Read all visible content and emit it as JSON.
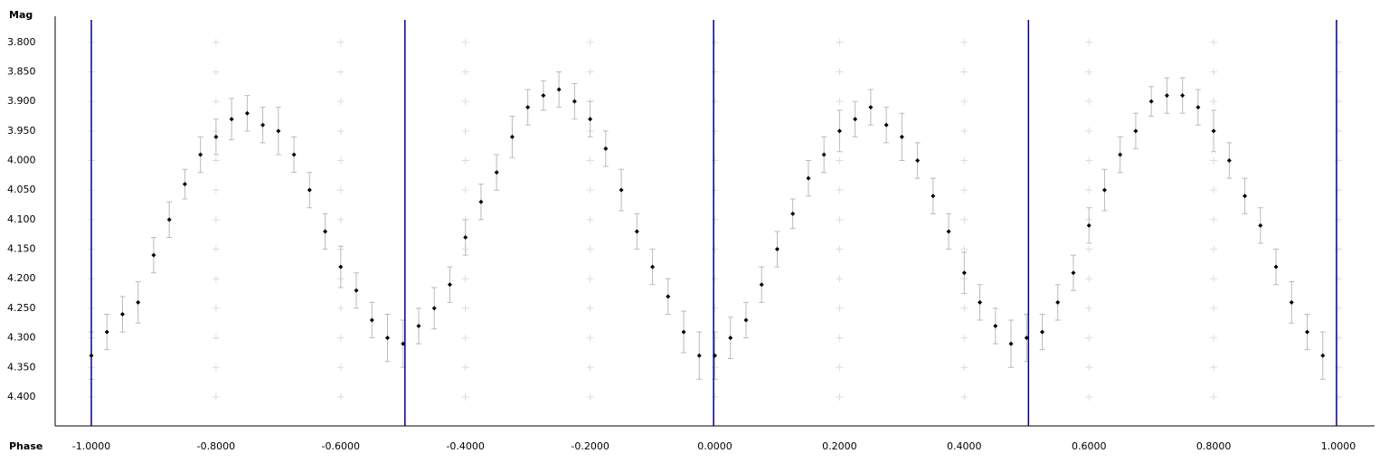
{
  "chart_data": {
    "type": "errorscatter",
    "ylabel": "Mag",
    "xlabel": "Phase",
    "xlim": [
      -1.058,
      1.058
    ],
    "ylim": [
      4.449,
      3.756
    ],
    "xticks": [
      {
        "value": -1.0,
        "label": "-1.0000"
      },
      {
        "value": -0.8,
        "label": "-0.8000"
      },
      {
        "value": -0.6,
        "label": "-0.6000"
      },
      {
        "value": -0.4,
        "label": "-0.4000"
      },
      {
        "value": -0.2,
        "label": "-0.2000"
      },
      {
        "value": 0,
        "label": "0.0000"
      },
      {
        "value": 0.2,
        "label": "0.2000"
      },
      {
        "value": 0.4,
        "label": "0.4000"
      },
      {
        "value": 0.6,
        "label": "0.6000"
      },
      {
        "value": 0.8,
        "label": "0.8000"
      },
      {
        "value": 1.0,
        "label": "1.0000"
      }
    ],
    "yticks": [
      {
        "value": 3.8,
        "label": "3.800"
      },
      {
        "value": 3.85,
        "label": "3.850"
      },
      {
        "value": 3.9,
        "label": "3.900"
      },
      {
        "value": 3.95,
        "label": "3.950"
      },
      {
        "value": 4.0,
        "label": "4.000"
      },
      {
        "value": 4.05,
        "label": "4.050"
      },
      {
        "value": 4.1,
        "label": "4.100"
      },
      {
        "value": 4.15,
        "label": "4.150"
      },
      {
        "value": 4.2,
        "label": "4.200"
      },
      {
        "value": 4.25,
        "label": "4.250"
      },
      {
        "value": 4.3,
        "label": "4.300"
      },
      {
        "value": 4.35,
        "label": "4.350"
      },
      {
        "value": 4.4,
        "label": "4.400"
      }
    ],
    "grid": true,
    "color": "#000000",
    "error_color": "#bbbbbb",
    "vlines": [
      -1.0,
      -0.497,
      -0.002,
      0.503,
      0.997
    ],
    "vline_color": "#00008b",
    "x": [
      -1,
      -0.975,
      -0.95,
      -0.925,
      -0.9,
      -0.875,
      -0.85,
      -0.825,
      -0.8,
      -0.775,
      -0.75,
      -0.725,
      -0.7,
      -0.675,
      -0.65,
      -0.625,
      -0.6,
      -0.575,
      -0.55,
      -0.525,
      -0.5,
      -0.475,
      -0.45,
      -0.425,
      -0.4,
      -0.375,
      -0.35,
      -0.325,
      -0.3,
      -0.275,
      -0.25,
      -0.225,
      -0.2,
      -0.175,
      -0.15,
      -0.125,
      -0.1,
      -0.075,
      -0.05,
      -0.025,
      0,
      0.025,
      0.05,
      0.075,
      0.1,
      0.125,
      0.15,
      0.175,
      0.2,
      0.225,
      0.25,
      0.275,
      0.3,
      0.325,
      0.35,
      0.375,
      0.4,
      0.425,
      0.45,
      0.475,
      0.5,
      0.525,
      0.55,
      0.575,
      0.6,
      0.625,
      0.65,
      0.675,
      0.7,
      0.725,
      0.75,
      0.775,
      0.8,
      0.825,
      0.85,
      0.875,
      0.9,
      0.925,
      0.95,
      0.975
    ],
    "values": [
      4.33,
      4.29,
      4.26,
      4.24,
      4.16,
      4.1,
      4.04,
      3.99,
      3.96,
      3.93,
      3.92,
      3.94,
      3.95,
      3.99,
      4.05,
      4.12,
      4.18,
      4.22,
      4.27,
      4.3,
      4.31,
      4.28,
      4.25,
      4.21,
      4.13,
      4.07,
      4.02,
      3.96,
      3.91,
      3.89,
      3.88,
      3.9,
      3.93,
      3.98,
      4.05,
      4.12,
      4.18,
      4.23,
      4.29,
      4.33,
      4.33,
      4.3,
      4.27,
      4.21,
      4.15,
      4.09,
      4.03,
      3.99,
      3.95,
      3.93,
      3.91,
      3.94,
      3.96,
      4.0,
      4.06,
      4.12,
      4.19,
      4.24,
      4.28,
      4.31,
      4.3,
      4.29,
      4.24,
      4.19,
      4.11,
      4.05,
      3.99,
      3.95,
      3.9,
      3.89,
      3.89,
      3.91,
      3.95,
      4.0,
      4.06,
      4.11,
      4.18,
      4.24,
      4.29,
      4.33
    ],
    "errors": [
      0.04,
      0.03,
      0.03,
      0.035,
      0.03,
      0.03,
      0.025,
      0.03,
      0.03,
      0.035,
      0.03,
      0.03,
      0.04,
      0.03,
      0.03,
      0.03,
      0.035,
      0.03,
      0.03,
      0.04,
      0.04,
      0.03,
      0.035,
      0.03,
      0.03,
      0.03,
      0.03,
      0.035,
      0.03,
      0.025,
      0.03,
      0.03,
      0.03,
      0.03,
      0.035,
      0.03,
      0.03,
      0.03,
      0.035,
      0.04,
      0.04,
      0.035,
      0.03,
      0.03,
      0.03,
      0.025,
      0.03,
      0.03,
      0.035,
      0.03,
      0.03,
      0.03,
      0.04,
      0.03,
      0.03,
      0.03,
      0.035,
      0.03,
      0.03,
      0.04,
      0.04,
      0.03,
      0.03,
      0.03,
      0.03,
      0.035,
      0.03,
      0.03,
      0.025,
      0.03,
      0.03,
      0.03,
      0.035,
      0.03,
      0.03,
      0.03,
      0.03,
      0.035,
      0.03,
      0.04
    ]
  }
}
